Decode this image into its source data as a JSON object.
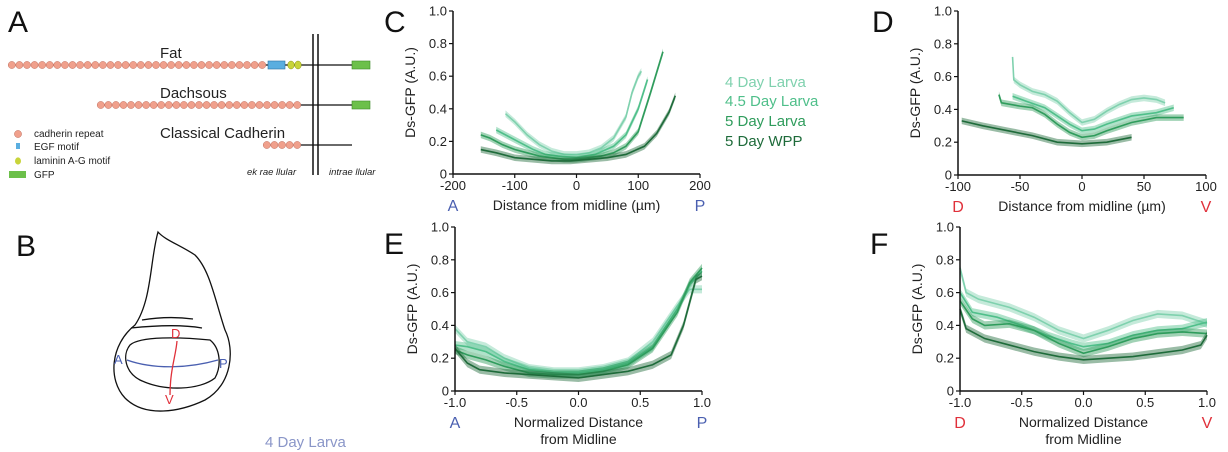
{
  "panels": {
    "a": "A",
    "b": "B",
    "c": "C",
    "d": "D",
    "e": "E",
    "f": "F"
  },
  "schematic_a": {
    "rows": [
      "Fat",
      "Dachsous",
      "Classical Cadherin"
    ],
    "legend": [
      "cadherin repeat",
      "EGF motif",
      "laminin A-G motif",
      "GFP"
    ],
    "extracellular": "ek rae  llular",
    "intracellular": "intrae  llular",
    "colors": {
      "cadherin": "#f0a08c",
      "egf": "#5aaee0",
      "laminin": "#c8d43a",
      "gfp": "#6cc04a"
    }
  },
  "schematic_b": {
    "d": "D",
    "v": "V",
    "a": "A",
    "p": "P",
    "cut_text": "4 Day Larva",
    "colors": {
      "dv": "#e0303a",
      "ap": "#4a5fb0"
    }
  },
  "legend": [
    "4 Day Larva",
    "4.5 Day Larva",
    "5 Day Larva",
    "5 Day WPP"
  ],
  "series_colors": [
    "#7fd1ae",
    "#4fbf8a",
    "#2f9c5c",
    "#1e6b3a"
  ],
  "chart_data": [
    {
      "id": "c",
      "type": "line",
      "ylabel": "Ds-GFP (A.U.)",
      "xlabel": "Distance from midline (µm)",
      "end_left": "A",
      "end_right": "P",
      "end_color": "#4a5fb0",
      "xlim": [
        -200,
        200
      ],
      "ylim": [
        0,
        1
      ],
      "xticks": [
        "-200",
        "-100",
        "0",
        "100",
        "200"
      ],
      "yticks": [
        "0",
        "0.2",
        "0.4",
        "0.6",
        "0.8",
        "1.0"
      ],
      "band": 0.02,
      "series": [
        {
          "name": "4 Day Larva",
          "points": [
            [
              -115,
              0.37
            ],
            [
              -100,
              0.32
            ],
            [
              -80,
              0.24
            ],
            [
              -60,
              0.18
            ],
            [
              -40,
              0.14
            ],
            [
              -20,
              0.12
            ],
            [
              0,
              0.12
            ],
            [
              20,
              0.13
            ],
            [
              40,
              0.16
            ],
            [
              60,
              0.22
            ],
            [
              80,
              0.35
            ],
            [
              90,
              0.5
            ],
            [
              100,
              0.6
            ],
            [
              105,
              0.63
            ]
          ]
        },
        {
          "name": "4.5 Day Larva",
          "points": [
            [
              -130,
              0.27
            ],
            [
              -110,
              0.23
            ],
            [
              -90,
              0.19
            ],
            [
              -70,
              0.15
            ],
            [
              -50,
              0.12
            ],
            [
              -30,
              0.11
            ],
            [
              0,
              0.1
            ],
            [
              30,
              0.12
            ],
            [
              60,
              0.17
            ],
            [
              80,
              0.24
            ],
            [
              100,
              0.4
            ],
            [
              115,
              0.58
            ]
          ]
        },
        {
          "name": "5 Day Larva",
          "points": [
            [
              -155,
              0.24
            ],
            [
              -140,
              0.22
            ],
            [
              -120,
              0.18
            ],
            [
              -100,
              0.15
            ],
            [
              -80,
              0.13
            ],
            [
              -60,
              0.11
            ],
            [
              -40,
              0.1
            ],
            [
              -20,
              0.09
            ],
            [
              0,
              0.09
            ],
            [
              20,
              0.1
            ],
            [
              40,
              0.11
            ],
            [
              60,
              0.13
            ],
            [
              80,
              0.17
            ],
            [
              100,
              0.26
            ],
            [
              120,
              0.5
            ],
            [
              140,
              0.75
            ]
          ]
        },
        {
          "name": "5 Day WPP",
          "points": [
            [
              -155,
              0.15
            ],
            [
              -130,
              0.13
            ],
            [
              -100,
              0.1
            ],
            [
              -70,
              0.09
            ],
            [
              -40,
              0.08
            ],
            [
              -10,
              0.08
            ],
            [
              20,
              0.09
            ],
            [
              50,
              0.1
            ],
            [
              80,
              0.12
            ],
            [
              110,
              0.17
            ],
            [
              130,
              0.25
            ],
            [
              150,
              0.38
            ],
            [
              160,
              0.48
            ]
          ]
        }
      ]
    },
    {
      "id": "d",
      "type": "line",
      "ylabel": "Ds-GFP (A.U.)",
      "xlabel": "Distance from midline (µm)",
      "end_left": "D",
      "end_right": "V",
      "end_color": "#e0303a",
      "xlim": [
        -100,
        100
      ],
      "ylim": [
        0,
        1
      ],
      "xticks": [
        "-100",
        "-50",
        "0",
        "50",
        "100"
      ],
      "yticks": [
        "0",
        "0.2",
        "0.4",
        "0.6",
        "0.8",
        "1.0"
      ],
      "band": 0.02,
      "series": [
        {
          "name": "4 Day Larva",
          "points": [
            [
              -56,
              0.72
            ],
            [
              -55,
              0.58
            ],
            [
              -50,
              0.55
            ],
            [
              -40,
              0.51
            ],
            [
              -30,
              0.49
            ],
            [
              -20,
              0.45
            ],
            [
              -10,
              0.38
            ],
            [
              0,
              0.32
            ],
            [
              10,
              0.34
            ],
            [
              20,
              0.39
            ],
            [
              30,
              0.43
            ],
            [
              40,
              0.46
            ],
            [
              50,
              0.47
            ],
            [
              60,
              0.46
            ],
            [
              67,
              0.44
            ]
          ]
        },
        {
          "name": "4.5 Day Larva",
          "points": [
            [
              -56,
              0.48
            ],
            [
              -45,
              0.45
            ],
            [
              -30,
              0.41
            ],
            [
              -20,
              0.36
            ],
            [
              -10,
              0.31
            ],
            [
              0,
              0.27
            ],
            [
              10,
              0.28
            ],
            [
              20,
              0.31
            ],
            [
              40,
              0.36
            ],
            [
              60,
              0.38
            ],
            [
              74,
              0.41
            ]
          ]
        },
        {
          "name": "5 Day Larva",
          "points": [
            [
              -67,
              0.49
            ],
            [
              -65,
              0.44
            ],
            [
              -50,
              0.42
            ],
            [
              -40,
              0.41
            ],
            [
              -30,
              0.37
            ],
            [
              -20,
              0.31
            ],
            [
              -10,
              0.26
            ],
            [
              0,
              0.23
            ],
            [
              10,
              0.24
            ],
            [
              20,
              0.27
            ],
            [
              40,
              0.32
            ],
            [
              60,
              0.35
            ],
            [
              82,
              0.35
            ]
          ]
        },
        {
          "name": "5 Day WPP",
          "points": [
            [
              -97,
              0.33
            ],
            [
              -80,
              0.3
            ],
            [
              -60,
              0.27
            ],
            [
              -40,
              0.24
            ],
            [
              -20,
              0.2
            ],
            [
              0,
              0.19
            ],
            [
              20,
              0.2
            ],
            [
              40,
              0.23
            ]
          ]
        }
      ]
    },
    {
      "id": "e",
      "type": "line",
      "ylabel": "Ds-GFP (A.U.)",
      "xlabel": "Normalized Distance",
      "xlabel2": "from Midline",
      "end_left": "A",
      "end_right": "P",
      "end_color": "#4a5fb0",
      "xlim": [
        -1,
        1
      ],
      "ylim": [
        0,
        1
      ],
      "xticks": [
        "-1.0",
        "-0.5",
        "0.0",
        "0.5",
        "1.0"
      ],
      "yticks": [
        "0",
        "0.2",
        "0.4",
        "0.6",
        "0.8",
        "1.0"
      ],
      "band": 0.025,
      "series": [
        {
          "name": "4 Day Larva",
          "points": [
            [
              -1,
              0.38
            ],
            [
              -0.9,
              0.3
            ],
            [
              -0.75,
              0.27
            ],
            [
              -0.6,
              0.2
            ],
            [
              -0.4,
              0.14
            ],
            [
              -0.2,
              0.12
            ],
            [
              0,
              0.12
            ],
            [
              0.2,
              0.14
            ],
            [
              0.4,
              0.18
            ],
            [
              0.6,
              0.3
            ],
            [
              0.8,
              0.52
            ],
            [
              0.9,
              0.62
            ],
            [
              1,
              0.62
            ]
          ]
        },
        {
          "name": "4.5 Day Larva",
          "points": [
            [
              -1,
              0.28
            ],
            [
              -0.9,
              0.27
            ],
            [
              -0.75,
              0.24
            ],
            [
              -0.6,
              0.18
            ],
            [
              -0.4,
              0.13
            ],
            [
              -0.2,
              0.11
            ],
            [
              0,
              0.11
            ],
            [
              0.2,
              0.13
            ],
            [
              0.4,
              0.17
            ],
            [
              0.6,
              0.27
            ],
            [
              0.8,
              0.5
            ],
            [
              0.9,
              0.65
            ],
            [
              1,
              0.73
            ]
          ]
        },
        {
          "name": "5 Day Larva",
          "points": [
            [
              -1,
              0.25
            ],
            [
              -0.9,
              0.22
            ],
            [
              -0.75,
              0.19
            ],
            [
              -0.6,
              0.15
            ],
            [
              -0.4,
              0.11
            ],
            [
              -0.2,
              0.1
            ],
            [
              0,
              0.1
            ],
            [
              0.2,
              0.12
            ],
            [
              0.4,
              0.16
            ],
            [
              0.6,
              0.26
            ],
            [
              0.8,
              0.48
            ],
            [
              0.9,
              0.66
            ],
            [
              1,
              0.75
            ]
          ]
        },
        {
          "name": "5 Day WPP",
          "points": [
            [
              -1,
              0.26
            ],
            [
              -0.9,
              0.17
            ],
            [
              -0.8,
              0.13
            ],
            [
              -0.6,
              0.11
            ],
            [
              -0.4,
              0.1
            ],
            [
              -0.2,
              0.09
            ],
            [
              0,
              0.08
            ],
            [
              0.2,
              0.1
            ],
            [
              0.4,
              0.12
            ],
            [
              0.6,
              0.16
            ],
            [
              0.75,
              0.22
            ],
            [
              0.85,
              0.4
            ],
            [
              0.95,
              0.68
            ],
            [
              1,
              0.7
            ]
          ]
        }
      ]
    },
    {
      "id": "f",
      "type": "line",
      "ylabel": "Ds-GFP (A.U.)",
      "xlabel": "Normalized Distance",
      "xlabel2": "from Midline",
      "end_left": "D",
      "end_right": "V",
      "end_color": "#e0303a",
      "xlim": [
        -1,
        1
      ],
      "ylim": [
        0,
        1
      ],
      "xticks": [
        "-1.0",
        "-0.5",
        "0.0",
        "0.5",
        "1.0"
      ],
      "yticks": [
        "0",
        "0.2",
        "0.4",
        "0.6",
        "0.8",
        "1.0"
      ],
      "band": 0.025,
      "series": [
        {
          "name": "4 Day Larva",
          "points": [
            [
              -1,
              0.75
            ],
            [
              -0.95,
              0.6
            ],
            [
              -0.85,
              0.56
            ],
            [
              -0.6,
              0.51
            ],
            [
              -0.4,
              0.45
            ],
            [
              -0.2,
              0.37
            ],
            [
              0,
              0.32
            ],
            [
              0.2,
              0.37
            ],
            [
              0.4,
              0.43
            ],
            [
              0.6,
              0.47
            ],
            [
              0.8,
              0.46
            ],
            [
              1,
              0.41
            ]
          ]
        },
        {
          "name": "4.5 Day Larva",
          "points": [
            [
              -1,
              0.6
            ],
            [
              -0.9,
              0.48
            ],
            [
              -0.7,
              0.45
            ],
            [
              -0.5,
              0.4
            ],
            [
              -0.3,
              0.34
            ],
            [
              -0.1,
              0.29
            ],
            [
              0,
              0.27
            ],
            [
              0.2,
              0.29
            ],
            [
              0.4,
              0.34
            ],
            [
              0.6,
              0.37
            ],
            [
              0.8,
              0.38
            ],
            [
              1,
              0.42
            ]
          ]
        },
        {
          "name": "5 Day Larva",
          "points": [
            [
              -1,
              0.55
            ],
            [
              -0.9,
              0.44
            ],
            [
              -0.8,
              0.4
            ],
            [
              -0.6,
              0.41
            ],
            [
              -0.4,
              0.37
            ],
            [
              -0.2,
              0.29
            ],
            [
              0,
              0.23
            ],
            [
              0.2,
              0.27
            ],
            [
              0.4,
              0.32
            ],
            [
              0.6,
              0.35
            ],
            [
              0.8,
              0.36
            ],
            [
              1,
              0.35
            ]
          ]
        },
        {
          "name": "5 Day WPP",
          "points": [
            [
              -1,
              0.5
            ],
            [
              -0.95,
              0.38
            ],
            [
              -0.8,
              0.32
            ],
            [
              -0.6,
              0.28
            ],
            [
              -0.4,
              0.24
            ],
            [
              -0.2,
              0.21
            ],
            [
              0,
              0.19
            ],
            [
              0.2,
              0.2
            ],
            [
              0.4,
              0.21
            ],
            [
              0.6,
              0.23
            ],
            [
              0.8,
              0.25
            ],
            [
              0.95,
              0.28
            ],
            [
              1,
              0.34
            ]
          ]
        }
      ]
    }
  ]
}
